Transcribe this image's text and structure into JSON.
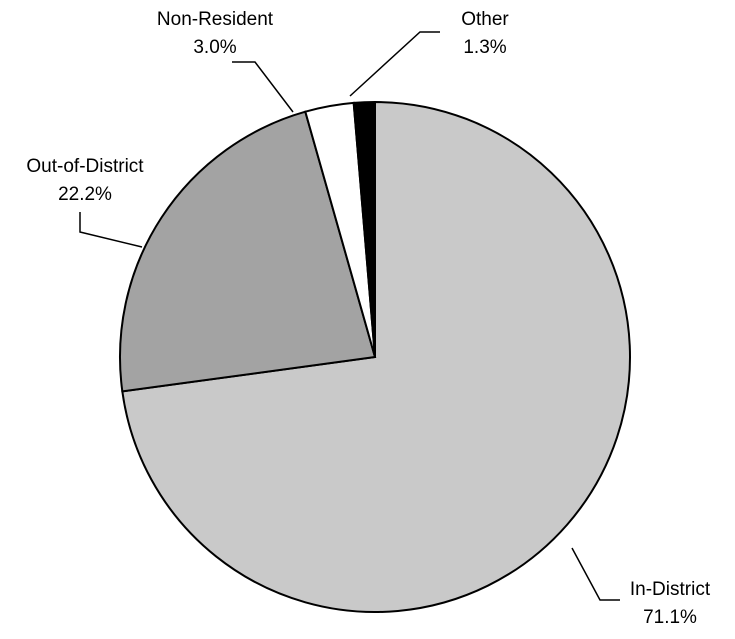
{
  "chart_data": {
    "type": "pie",
    "categories": [
      "In-District",
      "Out-of-District",
      "Non-Resident",
      "Other"
    ],
    "values": [
      71.1,
      22.2,
      3.0,
      1.3
    ],
    "value_labels": [
      "71.1%",
      "22.2%",
      "3.0%",
      "1.3%"
    ],
    "colors": [
      "#c9c9c9",
      "#a3a3a3",
      "#ffffff",
      "#000000"
    ]
  }
}
